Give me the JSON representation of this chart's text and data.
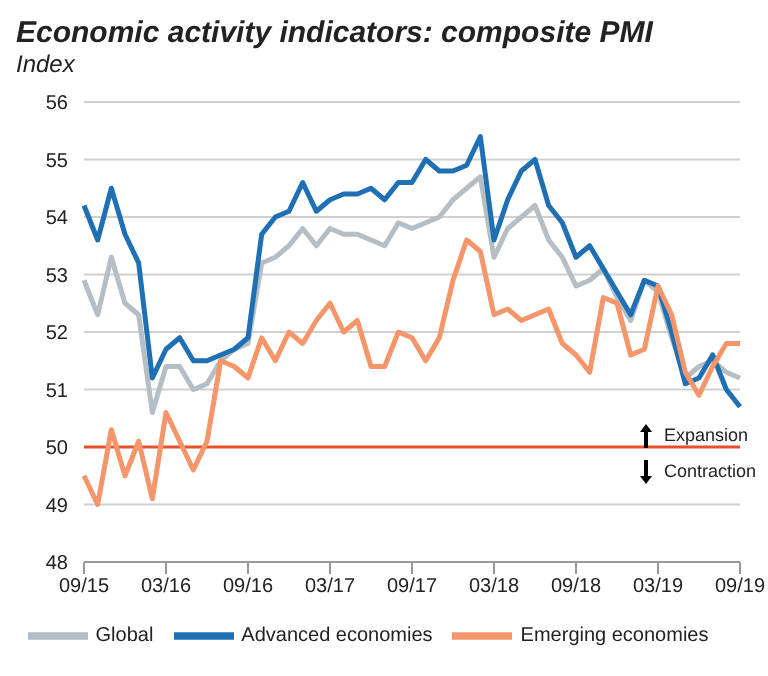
{
  "chart_data": {
    "type": "line",
    "title": "Economic activity indicators: composite PMI",
    "ylabel": "Index",
    "categories": [
      "09/15",
      null,
      null,
      null,
      null,
      null,
      "03/16",
      null,
      null,
      null,
      null,
      null,
      "09/16",
      null,
      null,
      null,
      null,
      null,
      "03/17",
      null,
      null,
      null,
      null,
      null,
      "09/17",
      null,
      null,
      null,
      null,
      null,
      "03/18",
      null,
      null,
      null,
      null,
      null,
      "09/18",
      null,
      null,
      null,
      null,
      null,
      "03/19",
      null,
      null,
      null,
      null,
      null,
      "09/19"
    ],
    "series": [
      {
        "name": "Global",
        "color": "#b4bec4",
        "values": [
          52.9,
          52.3,
          53.3,
          52.5,
          52.3,
          50.6,
          51.4,
          51.4,
          51.0,
          51.1,
          51.5,
          51.7,
          51.8,
          53.2,
          53.3,
          53.5,
          53.8,
          53.5,
          53.8,
          53.7,
          53.7,
          53.6,
          53.5,
          53.9,
          53.8,
          53.9,
          54.0,
          54.3,
          54.5,
          54.7,
          53.3,
          53.8,
          54.0,
          54.2,
          53.6,
          53.3,
          52.8,
          52.9,
          53.1,
          52.6,
          52.2,
          52.9,
          52.7,
          51.9,
          51.2,
          51.4,
          51.5,
          51.3,
          51.2
        ]
      },
      {
        "name": "Advanced economies",
        "color": "#1f6fb5",
        "values": [
          54.2,
          53.6,
          54.5,
          53.7,
          53.2,
          51.2,
          51.7,
          51.9,
          51.5,
          51.5,
          51.6,
          51.7,
          51.9,
          53.7,
          54.0,
          54.1,
          54.6,
          54.1,
          54.3,
          54.4,
          54.4,
          54.5,
          54.3,
          54.6,
          54.6,
          55.0,
          54.8,
          54.8,
          54.9,
          55.4,
          53.6,
          54.3,
          54.8,
          55.0,
          54.2,
          53.9,
          53.3,
          53.5,
          53.1,
          52.7,
          52.3,
          52.9,
          52.8,
          52.0,
          51.1,
          51.2,
          51.6,
          51.0,
          50.7
        ]
      },
      {
        "name": "Emerging economies",
        "color": "#f4956a",
        "values": [
          49.5,
          49.0,
          50.3,
          49.5,
          50.1,
          49.1,
          50.6,
          50.1,
          49.6,
          50.1,
          51.5,
          51.4,
          51.2,
          51.9,
          51.5,
          52.0,
          51.8,
          52.2,
          52.5,
          52.0,
          52.2,
          51.4,
          51.4,
          52.0,
          51.9,
          51.5,
          51.9,
          52.9,
          53.6,
          53.4,
          52.3,
          52.4,
          52.2,
          52.3,
          52.4,
          51.8,
          51.6,
          51.3,
          52.6,
          52.5,
          51.6,
          51.7,
          52.8,
          52.3,
          51.3,
          50.9,
          51.4,
          51.8,
          51.8
        ]
      }
    ],
    "ylim": [
      48,
      56
    ],
    "yticks": [
      48,
      49,
      50,
      51,
      52,
      53,
      54,
      55,
      56
    ],
    "grid": "y",
    "legend": "bottom",
    "marker": "none",
    "line_style": "solid",
    "ref_lines": [
      {
        "axis": "y",
        "value": 50,
        "color": "#e8502b"
      }
    ],
    "annotations": [
      "Expansion",
      "Contraction"
    ]
  }
}
